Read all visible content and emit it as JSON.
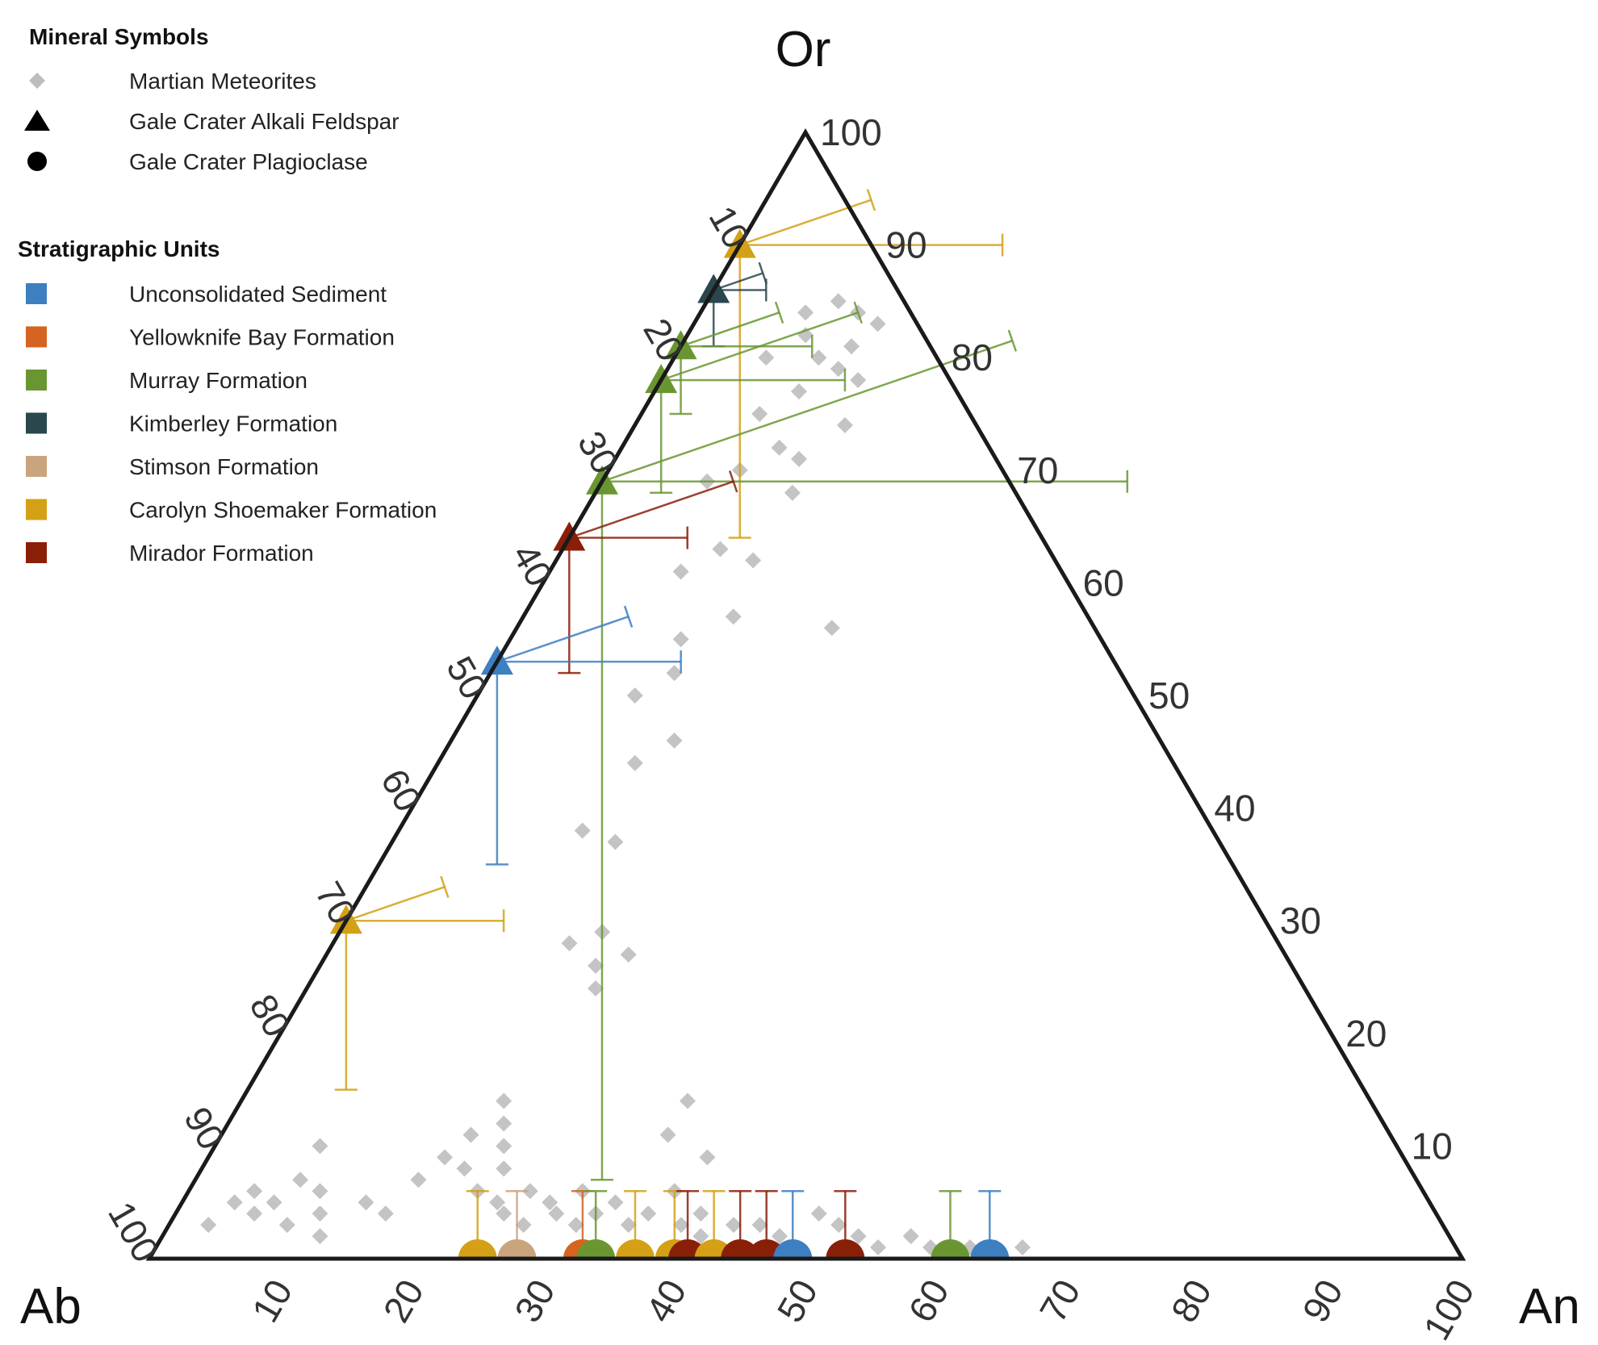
{
  "chart_data": {
    "type": "ternary",
    "corners": {
      "top": "Or",
      "left": "Ab",
      "right": "An"
    },
    "ticks": {
      "ab_axis": [
        "10",
        "20",
        "30",
        "40",
        "50",
        "60",
        "70",
        "80",
        "90",
        "100"
      ],
      "or_axis": [
        "100",
        "90",
        "80",
        "70",
        "60",
        "50",
        "40",
        "30",
        "20",
        "10"
      ],
      "an_axis": [
        "10",
        "20",
        "30",
        "40",
        "50",
        "60",
        "70",
        "80",
        "90",
        "100"
      ]
    },
    "legend": {
      "mineral_title": "Mineral Symbols",
      "minerals": [
        {
          "shape": "diamond",
          "label": "Martian Meteorites",
          "color": "#bdbdbd"
        },
        {
          "shape": "triangle",
          "label": "Gale Crater Alkali Feldspar",
          "color": "#000000"
        },
        {
          "shape": "circle",
          "label": "Gale Crater Plagioclase",
          "color": "#000000"
        }
      ],
      "units_title": "Stratigraphic Units",
      "units": [
        {
          "key": "uns",
          "label": "Unconsolidated Sediment",
          "color": "#3d7fc1"
        },
        {
          "key": "ykb",
          "label": "Yellowknife Bay Formation",
          "color": "#d4641f"
        },
        {
          "key": "mur",
          "label": "Murray Formation",
          "color": "#6a9632"
        },
        {
          "key": "kim",
          "label": "Kimberley Formation",
          "color": "#29474d"
        },
        {
          "key": "sti",
          "label": "Stimson Formation",
          "color": "#c9a47c"
        },
        {
          "key": "car",
          "label": "Carolyn Shoemaker Formation",
          "color": "#d4a015"
        },
        {
          "key": "mir",
          "label": "Mirador Formation",
          "color": "#8a1f08"
        }
      ]
    },
    "feldspar_points": [
      {
        "unit": "car",
        "or": 90,
        "an": 0,
        "err_or": 26,
        "err_ab": 8,
        "err_an": 20
      },
      {
        "unit": "kim",
        "or": 86,
        "an": 0,
        "err_or": 5,
        "err_ab": 3,
        "err_an": 4
      },
      {
        "unit": "mur",
        "or": 81,
        "an": 0,
        "err_or": 6,
        "err_ab": 6,
        "err_an": 10
      },
      {
        "unit": "mur",
        "or": 78,
        "an": 0,
        "err_or": 10,
        "err_ab": 12,
        "err_an": 14
      },
      {
        "unit": "mur",
        "or": 69,
        "an": 0,
        "err_or": 62,
        "err_ab": 25,
        "err_an": 40
      },
      {
        "unit": "mir",
        "or": 64,
        "an": 0,
        "err_or": 12,
        "err_ab": 10,
        "err_an": 9
      },
      {
        "unit": "uns",
        "or": 53,
        "an": 0,
        "err_or": 18,
        "err_ab": 8,
        "err_an": 14
      },
      {
        "unit": "car",
        "or": 30,
        "an": 0,
        "err_or": 15,
        "err_ab": 6,
        "err_an": 12
      }
    ],
    "plagioclase_points": [
      {
        "unit": "car",
        "an": 25,
        "or": 0
      },
      {
        "unit": "sti",
        "an": 28,
        "or": 0
      },
      {
        "unit": "ykb",
        "an": 33,
        "or": 0
      },
      {
        "unit": "mur",
        "an": 34,
        "or": 0
      },
      {
        "unit": "car",
        "an": 37,
        "or": 0
      },
      {
        "unit": "car",
        "an": 40,
        "or": 0
      },
      {
        "unit": "mir",
        "an": 41,
        "or": 0
      },
      {
        "unit": "car",
        "an": 43,
        "or": 0
      },
      {
        "unit": "mir",
        "an": 45,
        "or": 0
      },
      {
        "unit": "mir",
        "an": 47,
        "or": 0
      },
      {
        "unit": "uns",
        "an": 49,
        "or": 0
      },
      {
        "unit": "mir",
        "an": 53,
        "or": 0
      },
      {
        "unit": "mur",
        "an": 61,
        "or": 0
      },
      {
        "unit": "uns",
        "an": 64,
        "or": 0
      }
    ],
    "meteorites": [
      {
        "an": 3,
        "or": 3
      },
      {
        "an": 4,
        "or": 5
      },
      {
        "an": 5,
        "or": 6
      },
      {
        "an": 6,
        "or": 4
      },
      {
        "an": 7,
        "or": 5
      },
      {
        "an": 8,
        "or": 7
      },
      {
        "an": 9,
        "or": 3
      },
      {
        "an": 10,
        "or": 6
      },
      {
        "an": 11,
        "or": 4
      },
      {
        "an": 8,
        "or": 10
      },
      {
        "an": 12,
        "or": 2
      },
      {
        "an": 14,
        "or": 5
      },
      {
        "an": 16,
        "or": 4
      },
      {
        "an": 17,
        "or": 7
      },
      {
        "an": 18,
        "or": 9
      },
      {
        "an": 19,
        "or": 11
      },
      {
        "an": 20,
        "or": 14
      },
      {
        "an": 20,
        "or": 8
      },
      {
        "an": 21,
        "or": 12
      },
      {
        "an": 22,
        "or": 10
      },
      {
        "an": 22,
        "or": 6
      },
      {
        "an": 23,
        "or": 8
      },
      {
        "an": 24,
        "or": 5
      },
      {
        "an": 25,
        "or": 4
      },
      {
        "an": 26,
        "or": 6
      },
      {
        "an": 27,
        "or": 3
      },
      {
        "an": 28,
        "or": 5
      },
      {
        "an": 29,
        "or": 4
      },
      {
        "an": 30,
        "or": 6
      },
      {
        "an": 31,
        "or": 3
      },
      {
        "an": 32,
        "or": 4
      },
      {
        "an": 33,
        "or": 5
      },
      {
        "an": 34,
        "or": 11
      },
      {
        "an": 34,
        "or": 14
      },
      {
        "an": 35,
        "or": 3
      },
      {
        "an": 36,
        "or": 4
      },
      {
        "an": 37,
        "or": 6
      },
      {
        "an": 38,
        "or": 9
      },
      {
        "an": 39,
        "or": 3
      },
      {
        "an": 40,
        "or": 4
      },
      {
        "an": 41,
        "or": 2
      },
      {
        "an": 43,
        "or": 3
      },
      {
        "an": 45,
        "or": 3
      },
      {
        "an": 47,
        "or": 2
      },
      {
        "an": 49,
        "or": 4
      },
      {
        "an": 51,
        "or": 3
      },
      {
        "an": 53,
        "or": 2
      },
      {
        "an": 55,
        "or": 1
      },
      {
        "an": 57,
        "or": 2
      },
      {
        "an": 59,
        "or": 1
      },
      {
        "an": 62,
        "or": 1
      },
      {
        "an": 64,
        "or": 1
      },
      {
        "an": 66,
        "or": 1
      },
      {
        "an": 18,
        "or": 28
      },
      {
        "an": 20,
        "or": 29
      },
      {
        "an": 21,
        "or": 26
      },
      {
        "an": 22,
        "or": 24
      },
      {
        "an": 23,
        "or": 27
      },
      {
        "an": 17,
        "or": 37
      },
      {
        "an": 15,
        "or": 44
      },
      {
        "an": 17,
        "or": 46
      },
      {
        "an": 14,
        "or": 38
      },
      {
        "an": 12,
        "or": 50
      },
      {
        "an": 14,
        "or": 52
      },
      {
        "an": 13,
        "or": 55
      },
      {
        "an": 16,
        "or": 57
      },
      {
        "an": 10,
        "or": 61
      },
      {
        "an": 12,
        "or": 63
      },
      {
        "an": 15,
        "or": 62
      },
      {
        "an": 24,
        "or": 56
      },
      {
        "an": 8,
        "or": 69
      },
      {
        "an": 10,
        "or": 70
      },
      {
        "an": 12,
        "or": 72
      },
      {
        "an": 14,
        "or": 71
      },
      {
        "an": 15,
        "or": 68
      },
      {
        "an": 9,
        "or": 75
      },
      {
        "an": 11,
        "or": 77
      },
      {
        "an": 13,
        "or": 79
      },
      {
        "an": 15,
        "or": 78
      },
      {
        "an": 16,
        "or": 74
      },
      {
        "an": 7,
        "or": 80
      },
      {
        "an": 9,
        "or": 82
      },
      {
        "an": 11,
        "or": 80
      },
      {
        "an": 13,
        "or": 81
      },
      {
        "an": 14,
        "or": 83
      },
      {
        "an": 8,
        "or": 84
      },
      {
        "an": 10,
        "or": 85
      },
      {
        "an": 12,
        "or": 84
      }
    ]
  }
}
